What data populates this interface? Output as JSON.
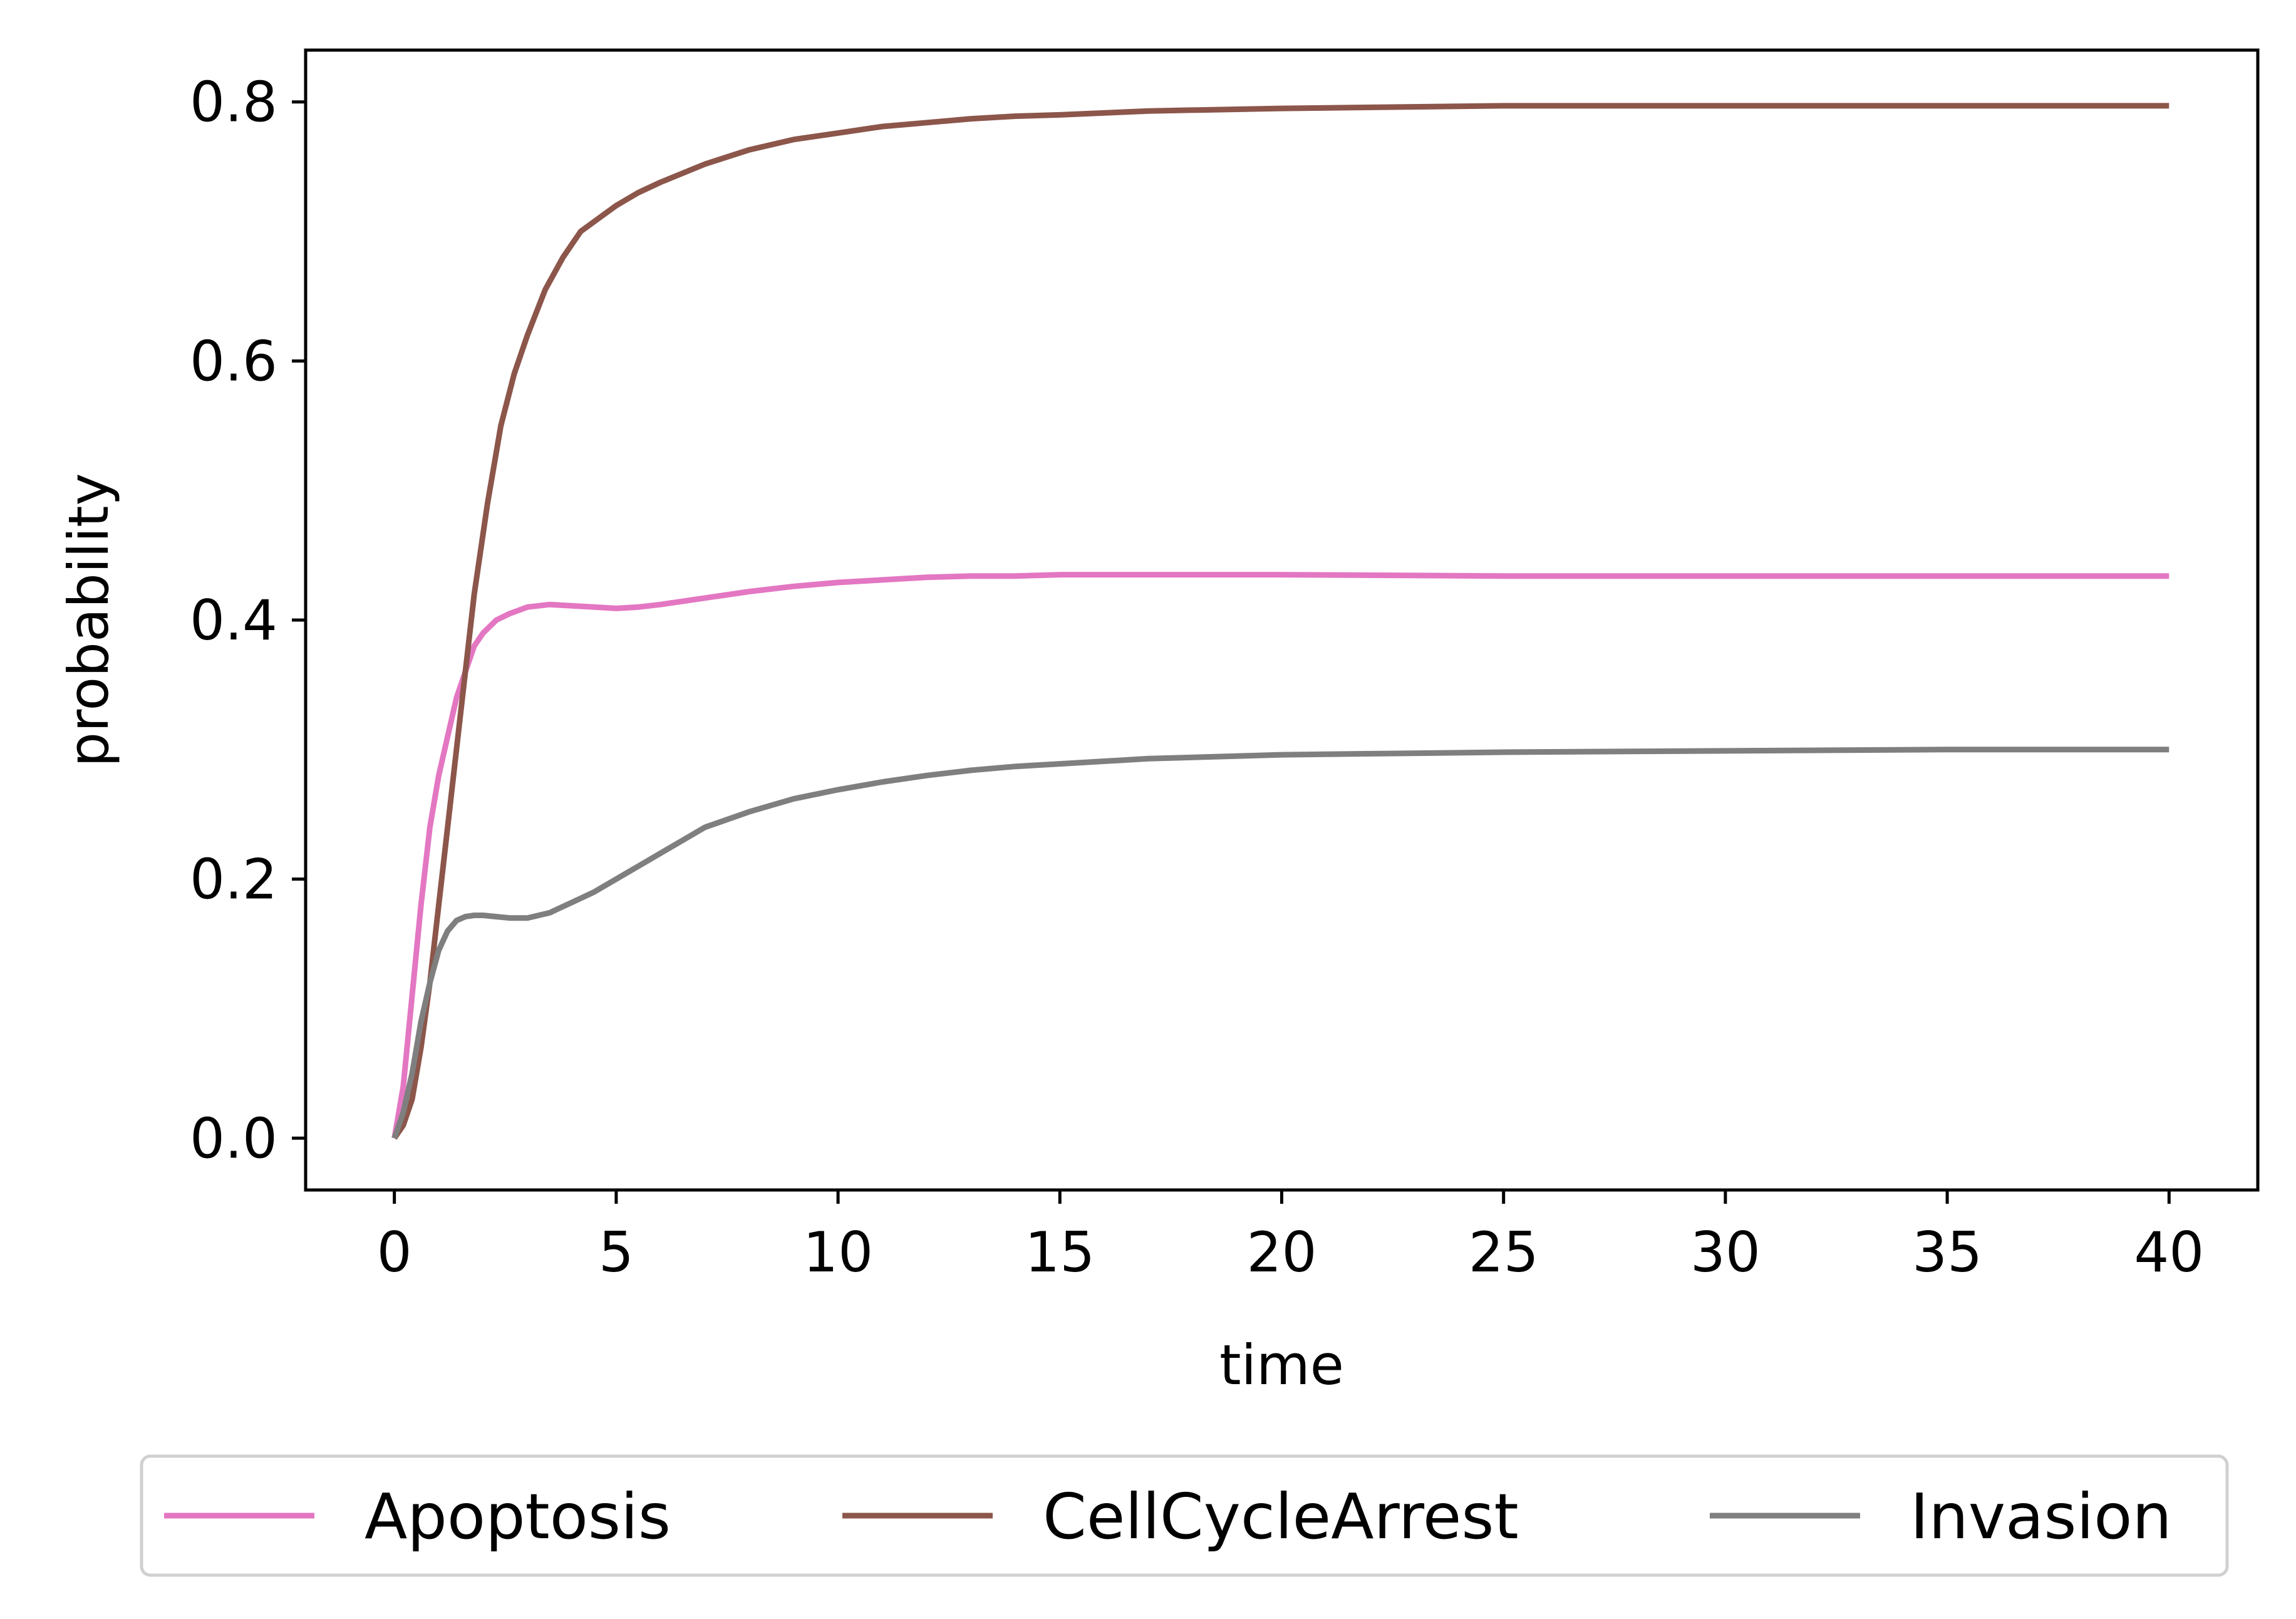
{
  "chart_data": {
    "type": "line",
    "title": "",
    "xlabel": "time",
    "ylabel": "probability",
    "xlim": [
      -2,
      42
    ],
    "ylim": [
      -0.04,
      0.84
    ],
    "xticks": [
      0,
      5,
      10,
      15,
      20,
      25,
      30,
      35,
      40
    ],
    "xtick_labels": [
      "0",
      "5",
      "10",
      "15",
      "20",
      "25",
      "30",
      "35",
      "40"
    ],
    "yticks": [
      0.0,
      0.2,
      0.4,
      0.6,
      0.8
    ],
    "ytick_labels": [
      "0.0",
      "0.2",
      "0.4",
      "0.6",
      "0.8"
    ],
    "grid": false,
    "legend_placement": "below",
    "series": [
      {
        "name": "Apoptosis",
        "color": "#e377c2",
        "x": [
          0,
          0.2,
          0.4,
          0.6,
          0.8,
          1.0,
          1.2,
          1.4,
          1.6,
          1.8,
          2.0,
          2.3,
          2.6,
          3.0,
          3.5,
          4.0,
          4.5,
          5.0,
          5.5,
          6.0,
          7.0,
          8.0,
          9.0,
          10.0,
          11.0,
          12.0,
          13.0,
          14.0,
          15.0,
          17.0,
          20.0,
          25.0,
          30.0,
          35.0,
          40.0
        ],
        "values": [
          0.0,
          0.04,
          0.11,
          0.18,
          0.24,
          0.28,
          0.31,
          0.34,
          0.36,
          0.38,
          0.39,
          0.4,
          0.405,
          0.41,
          0.412,
          0.411,
          0.41,
          0.409,
          0.41,
          0.412,
          0.417,
          0.422,
          0.426,
          0.429,
          0.431,
          0.433,
          0.434,
          0.434,
          0.435,
          0.435,
          0.435,
          0.434,
          0.434,
          0.434,
          0.434
        ]
      },
      {
        "name": "CellCycleArrest",
        "color": "#8c564b",
        "x": [
          0,
          0.2,
          0.4,
          0.6,
          0.8,
          1.0,
          1.2,
          1.5,
          1.8,
          2.1,
          2.4,
          2.7,
          3.0,
          3.4,
          3.8,
          4.2,
          4.6,
          5.0,
          5.5,
          6.0,
          7.0,
          8.0,
          9.0,
          10.0,
          11.0,
          12.0,
          13.0,
          14.0,
          15.0,
          17.0,
          20.0,
          25.0,
          30.0,
          35.0,
          40.0
        ],
        "values": [
          0.0,
          0.01,
          0.03,
          0.07,
          0.12,
          0.18,
          0.24,
          0.33,
          0.42,
          0.49,
          0.55,
          0.59,
          0.62,
          0.655,
          0.68,
          0.7,
          0.71,
          0.72,
          0.73,
          0.738,
          0.752,
          0.763,
          0.771,
          0.776,
          0.781,
          0.784,
          0.787,
          0.789,
          0.79,
          0.793,
          0.795,
          0.797,
          0.797,
          0.797,
          0.797
        ]
      },
      {
        "name": "Invasion",
        "color": "#7f7f7f",
        "x": [
          0,
          0.2,
          0.4,
          0.6,
          0.8,
          1.0,
          1.2,
          1.4,
          1.6,
          1.8,
          2.0,
          2.3,
          2.6,
          3.0,
          3.5,
          4.0,
          4.5,
          5.0,
          5.5,
          6.0,
          6.5,
          7.0,
          8.0,
          9.0,
          10.0,
          11.0,
          12.0,
          13.0,
          14.0,
          15.0,
          17.0,
          20.0,
          25.0,
          30.0,
          35.0,
          40.0
        ],
        "values": [
          0.0,
          0.02,
          0.05,
          0.09,
          0.12,
          0.145,
          0.16,
          0.168,
          0.171,
          0.172,
          0.172,
          0.171,
          0.17,
          0.17,
          0.174,
          0.182,
          0.19,
          0.2,
          0.21,
          0.22,
          0.23,
          0.24,
          0.252,
          0.262,
          0.269,
          0.275,
          0.28,
          0.284,
          0.287,
          0.289,
          0.293,
          0.296,
          0.298,
          0.299,
          0.3,
          0.3
        ]
      }
    ]
  }
}
